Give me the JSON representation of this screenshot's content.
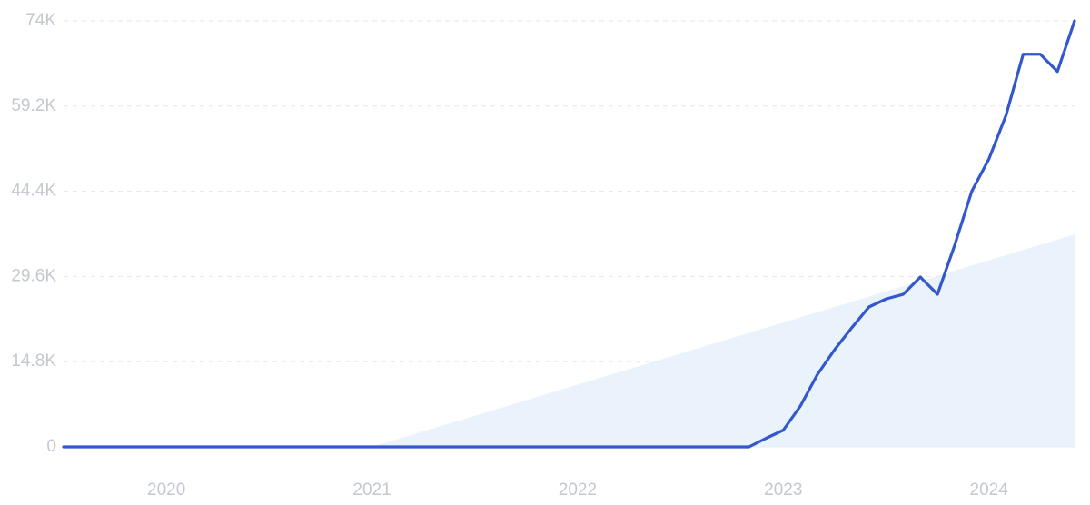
{
  "chart_data": {
    "type": "line",
    "categories": [
      null,
      null,
      null,
      null,
      null,
      null,
      "2020",
      null,
      null,
      null,
      null,
      null,
      null,
      null,
      null,
      null,
      null,
      null,
      "2021",
      null,
      null,
      null,
      null,
      null,
      null,
      null,
      null,
      null,
      null,
      null,
      "2022",
      null,
      null,
      null,
      null,
      null,
      null,
      null,
      null,
      null,
      null,
      null,
      "2023",
      null,
      null,
      null,
      null,
      null,
      null,
      null,
      null,
      null,
      null,
      null,
      "2024",
      null,
      null,
      null,
      null,
      null
    ],
    "series": [
      {
        "color": "#3358cc",
        "values": [
          0,
          0,
          0,
          0,
          0,
          0,
          0,
          0,
          0,
          0,
          0,
          0,
          0,
          0,
          0,
          0,
          0,
          0,
          0,
          0,
          0,
          0,
          0,
          0,
          0,
          0,
          0,
          0,
          0,
          0,
          0,
          0,
          0,
          0,
          0,
          0,
          0,
          0,
          0,
          0,
          0,
          1500,
          2900,
          7100,
          12600,
          16900,
          20700,
          24300,
          25700,
          26500,
          29500,
          26500,
          35000,
          44400,
          50000,
          57600,
          68200,
          68200,
          65200,
          74000
        ]
      },
      {
        "type": "area",
        "color": "#e6f0fc",
        "values": [
          null,
          null,
          null,
          null,
          null,
          null,
          null,
          null,
          null,
          null,
          null,
          null,
          null,
          null,
          null,
          null,
          null,
          null,
          0,
          900,
          1800,
          2700,
          3600,
          4500,
          5400,
          6300,
          7200,
          8100,
          9000,
          9900,
          10800,
          11700,
          12600,
          13500,
          14400,
          15300,
          16200,
          17100,
          18000,
          18900,
          19800,
          20700,
          21600,
          22500,
          23400,
          24300,
          25200,
          26100,
          27000,
          27900,
          28800,
          29700,
          30600,
          31500,
          32400,
          33300,
          34200,
          35100,
          36000,
          36900
        ]
      }
    ],
    "ylim": [
      0,
      74000
    ],
    "yticks": [
      0,
      {
        "value": 14800,
        "label": "14.8K"
      },
      {
        "value": 29600,
        "label": "29.6K"
      },
      {
        "value": 44400,
        "label": "44.4K"
      },
      {
        "value": 59200,
        "label": "59.2K"
      },
      {
        "value": 74000,
        "label": "74K"
      }
    ],
    "grid": true
  }
}
